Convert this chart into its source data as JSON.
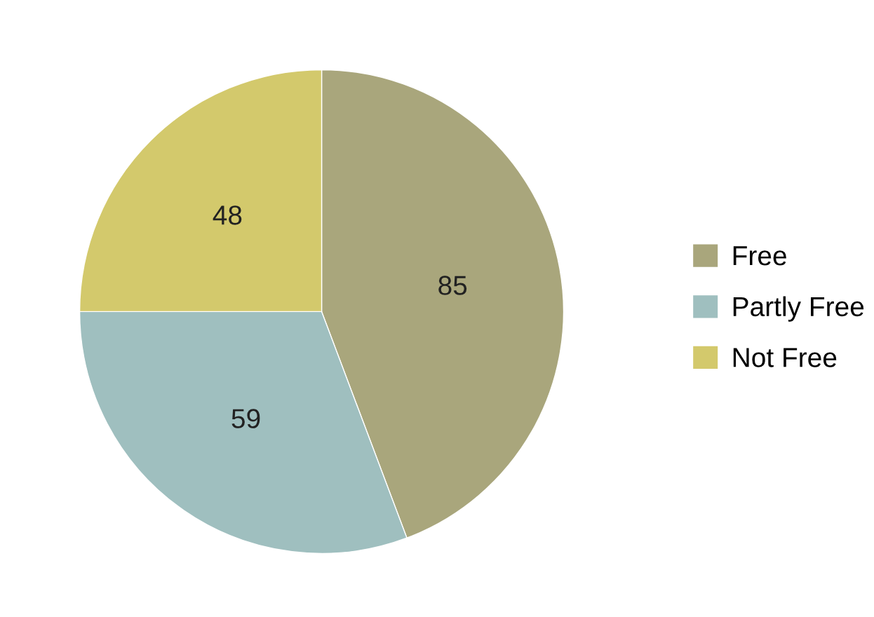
{
  "chart_data": {
    "type": "pie",
    "categories": [
      "Free",
      "Partly Free",
      "Not Free"
    ],
    "values": [
      85,
      59,
      48
    ],
    "colors": [
      "#a9a67c",
      "#9fbfbf",
      "#d3c96c"
    ],
    "data_labels": true,
    "legend": "right"
  }
}
